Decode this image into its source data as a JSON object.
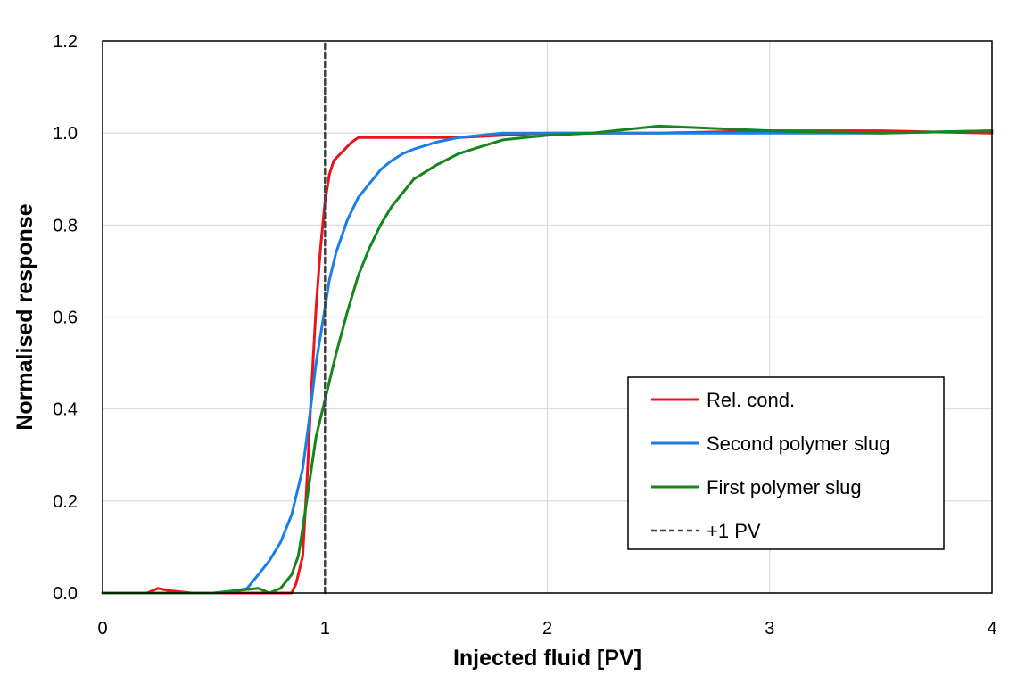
{
  "chart_data": {
    "type": "line",
    "xlabel": "Injected fluid [PV]",
    "ylabel": "Normalised response",
    "xlim": [
      0,
      4
    ],
    "ylim": [
      0,
      1.2
    ],
    "x_ticks": [
      0,
      1,
      2,
      3,
      4
    ],
    "y_ticks": [
      0.0,
      0.2,
      0.4,
      0.6,
      0.8,
      1.0,
      1.2
    ],
    "x_tick_labels": [
      "0",
      "1",
      "2",
      "3",
      "4"
    ],
    "y_tick_labels": [
      "0.0",
      "0.2",
      "0.4",
      "0.6",
      "0.8",
      "1.0",
      "1.2"
    ],
    "grid": true,
    "legend_position": "center-right",
    "series": [
      {
        "name": "Rel. cond.",
        "color": "#e8141c",
        "style": "solid",
        "x": [
          0,
          0.2,
          0.25,
          0.3,
          0.4,
          0.5,
          0.6,
          0.7,
          0.8,
          0.85,
          0.87,
          0.9,
          0.92,
          0.94,
          0.96,
          0.98,
          1.0,
          1.02,
          1.04,
          1.06,
          1.08,
          1.1,
          1.12,
          1.15,
          1.2,
          1.3,
          1.4,
          1.5,
          1.6,
          1.8,
          2.0,
          2.5,
          3.0,
          3.5,
          4.0
        ],
        "y": [
          0.0,
          0.0,
          0.01,
          0.005,
          0.0,
          0.0,
          0.0,
          0.0,
          0.0,
          0.0,
          0.02,
          0.08,
          0.25,
          0.45,
          0.62,
          0.75,
          0.85,
          0.91,
          0.94,
          0.95,
          0.96,
          0.97,
          0.98,
          0.99,
          0.99,
          0.99,
          0.99,
          0.99,
          0.99,
          0.995,
          1.0,
          1.0,
          1.005,
          1.005,
          1.0
        ]
      },
      {
        "name": "Second polymer slug",
        "color": "#1a7ee6",
        "style": "solid",
        "x": [
          0,
          0.3,
          0.5,
          0.6,
          0.65,
          0.7,
          0.75,
          0.8,
          0.85,
          0.9,
          0.93,
          0.96,
          1.0,
          1.02,
          1.05,
          1.1,
          1.15,
          1.2,
          1.25,
          1.3,
          1.35,
          1.4,
          1.5,
          1.6,
          1.7,
          1.8,
          1.9,
          2.0,
          2.2,
          2.5,
          3.0,
          3.5,
          4.0
        ],
        "y": [
          0.0,
          0.0,
          0.0,
          0.005,
          0.01,
          0.04,
          0.07,
          0.11,
          0.17,
          0.27,
          0.38,
          0.5,
          0.62,
          0.68,
          0.74,
          0.81,
          0.86,
          0.89,
          0.92,
          0.94,
          0.955,
          0.965,
          0.98,
          0.99,
          0.995,
          1.0,
          1.0,
          1.0,
          1.0,
          1.0,
          1.0,
          1.0,
          1.005
        ]
      },
      {
        "name": "First polymer slug",
        "color": "#15861b",
        "style": "solid",
        "x": [
          0,
          0.3,
          0.5,
          0.6,
          0.7,
          0.75,
          0.8,
          0.85,
          0.88,
          0.9,
          0.93,
          0.96,
          1.0,
          1.05,
          1.1,
          1.15,
          1.2,
          1.25,
          1.3,
          1.35,
          1.4,
          1.5,
          1.6,
          1.7,
          1.8,
          1.9,
          2.0,
          2.2,
          2.4,
          2.5,
          3.0,
          3.5,
          4.0
        ],
        "y": [
          0.0,
          0.0,
          0.0,
          0.005,
          0.01,
          0.0,
          0.01,
          0.04,
          0.08,
          0.14,
          0.24,
          0.34,
          0.42,
          0.52,
          0.61,
          0.69,
          0.75,
          0.8,
          0.84,
          0.87,
          0.9,
          0.93,
          0.955,
          0.97,
          0.985,
          0.99,
          0.995,
          1.0,
          1.01,
          1.015,
          1.005,
          1.0,
          1.005
        ]
      },
      {
        "name": "+1 PV",
        "color": "#404040",
        "style": "dashed",
        "x": [
          1,
          1
        ],
        "y": [
          0,
          1.2
        ]
      }
    ]
  }
}
